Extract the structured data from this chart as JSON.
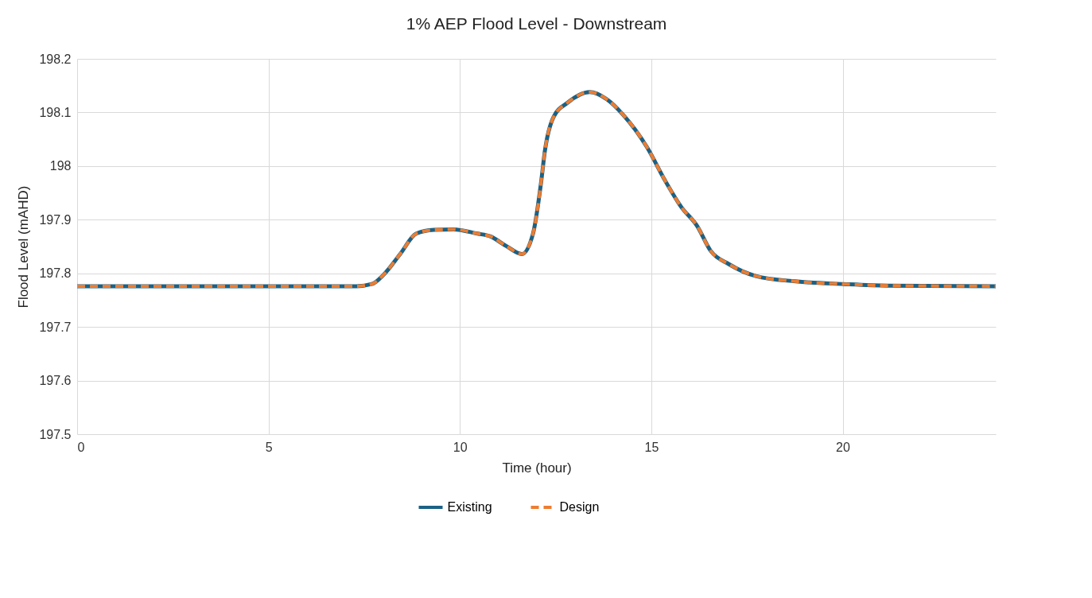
{
  "chart_data": {
    "type": "line",
    "title": "1% AEP Flood Level - Downstream",
    "xlabel": "Time (hour)",
    "ylabel": "Flood Level (mAHD)",
    "xlim": [
      0,
      24
    ],
    "xticks": [
      0,
      5,
      10,
      15,
      20
    ],
    "ylim": [
      197.5,
      198.2
    ],
    "yticks": [
      197.5,
      197.6,
      197.7,
      197.8,
      197.9,
      198,
      198.1,
      198.2
    ],
    "x": [
      0,
      7.3,
      7.7,
      8.0,
      8.44,
      8.86,
      9.33,
      9.83,
      10.46,
      10.79,
      11.21,
      11.62,
      11.91,
      12.12,
      12.22,
      12.45,
      12.81,
      13.39,
      13.85,
      14.26,
      14.89,
      15.36,
      15.78,
      16.2,
      16.55,
      17.03,
      17.73,
      18.77,
      20.02,
      21.19,
      24
    ],
    "series": [
      {
        "name": "Existing",
        "color": "#1b6185",
        "line_style": "solid",
        "values": [
          197.776,
          197.776,
          197.78,
          197.797,
          197.836,
          197.874,
          197.881,
          197.882,
          197.874,
          197.869,
          197.851,
          197.836,
          197.874,
          197.969,
          198.028,
          198.092,
          198.118,
          198.138,
          198.124,
          198.096,
          198.035,
          197.973,
          197.924,
          197.888,
          197.842,
          197.817,
          197.795,
          197.785,
          197.78,
          197.777,
          197.776
        ]
      },
      {
        "name": "Design",
        "color": "#ed7d31",
        "line_style": "dashed",
        "values": [
          197.776,
          197.776,
          197.78,
          197.797,
          197.836,
          197.874,
          197.881,
          197.882,
          197.874,
          197.869,
          197.851,
          197.836,
          197.874,
          197.969,
          198.028,
          198.092,
          198.118,
          198.138,
          198.124,
          198.096,
          198.035,
          197.973,
          197.924,
          197.888,
          197.842,
          197.817,
          197.795,
          197.785,
          197.78,
          197.777,
          197.776
        ]
      }
    ],
    "grid": true,
    "legend": "bottom",
    "marker": "none"
  }
}
